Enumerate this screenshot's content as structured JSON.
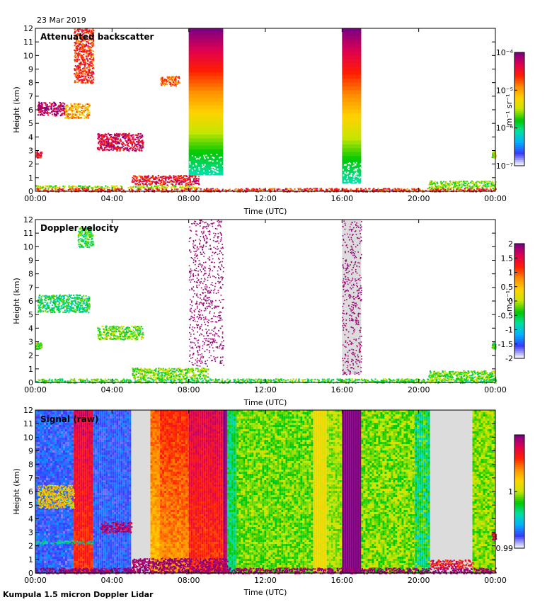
{
  "header": {
    "date": "23 Mar 2019"
  },
  "footer": {
    "instrument": "Kumpula 1.5 micron Doppler Lidar"
  },
  "palette": {
    "rainbow": [
      "#f2f2ff",
      "#3a3aff",
      "#00b0ff",
      "#00e0a0",
      "#00c800",
      "#c8e600",
      "#ffd200",
      "#ff8c00",
      "#ff1e00",
      "#e00050",
      "#800080"
    ],
    "missing_gray": "#dcdcdc"
  },
  "chart_data": [
    {
      "type": "heatmap",
      "id": "backscatter",
      "title": "Attenuated backscatter",
      "xlabel": "Time (UTC)",
      "ylabel": "Height (km)",
      "xlim": [
        0,
        24
      ],
      "ylim": [
        0,
        12
      ],
      "x_ticks": [
        0,
        4,
        8,
        12,
        16,
        20,
        24
      ],
      "x_tick_labels": [
        "00:00",
        "04:00",
        "08:00",
        "12:00",
        "16:00",
        "20:00",
        "00:00"
      ],
      "y_ticks": [
        0,
        1,
        2,
        3,
        4,
        5,
        6,
        7,
        8,
        9,
        10,
        11,
        12
      ],
      "colorbar": {
        "scale": "log",
        "range": [
          1e-07,
          0.0001
        ],
        "tick_values": [
          1e-07,
          1e-06,
          1e-05,
          0.0001
        ],
        "tick_labels": [
          "10⁻⁷",
          "10⁻⁶",
          "10⁻⁵",
          "10⁻⁴"
        ],
        "label": "m⁻¹ sr⁻¹"
      },
      "features": [
        {
          "kind": "block",
          "t": [
            8.0,
            9.8
          ],
          "h": [
            1.2,
            12
          ],
          "v": [
            0.3,
            1.0
          ],
          "dir": "vertical",
          "note": "dense returns rising to red at top"
        },
        {
          "kind": "block",
          "t": [
            16.0,
            17.0
          ],
          "h": [
            0.6,
            12
          ],
          "v": [
            0.3,
            1.0
          ],
          "dir": "vertical",
          "note": "strong column"
        },
        {
          "kind": "layer",
          "t": [
            0,
            8.5
          ],
          "h": [
            0.25,
            0.45
          ],
          "v": 0.5,
          "note": "boundary layer"
        },
        {
          "kind": "layer",
          "t": [
            0,
            24
          ],
          "h": [
            0.0,
            0.25
          ],
          "v": 0.8,
          "note": "surface layer"
        },
        {
          "kind": "layer",
          "t": [
            5.0,
            8.5
          ],
          "h": [
            0.5,
            1.2
          ],
          "v": 0.85,
          "note": "aerosol top descending"
        },
        {
          "kind": "layer",
          "t": [
            20.5,
            24
          ],
          "h": [
            0.25,
            0.8
          ],
          "v": 0.45,
          "note": "evening layer"
        },
        {
          "kind": "cloud",
          "t": [
            0.1,
            1.5
          ],
          "h": [
            5.6,
            6.6
          ],
          "v": 0.95,
          "note": "mid-level cloud"
        },
        {
          "kind": "cloud",
          "t": [
            1.5,
            2.8
          ],
          "h": [
            5.4,
            6.5
          ],
          "v": 0.65,
          "note": "mid-level cloud fading"
        },
        {
          "kind": "cloud",
          "t": [
            3.2,
            5.6
          ],
          "h": [
            3.0,
            4.3
          ],
          "v": 0.9,
          "note": "descending cloud"
        },
        {
          "kind": "cloud",
          "t": [
            2.0,
            3.0
          ],
          "h": [
            8.0,
            12
          ],
          "v": 0.8,
          "note": "cirrus"
        },
        {
          "kind": "cloud",
          "t": [
            0,
            0.3
          ],
          "h": [
            2.5,
            3.0
          ],
          "v": 0.85,
          "note": "low cloud"
        },
        {
          "kind": "cloud",
          "t": [
            6.5,
            7.5
          ],
          "h": [
            7.8,
            8.5
          ],
          "v": 0.75,
          "note": "small patch"
        },
        {
          "kind": "cloud",
          "t": [
            23.8,
            24
          ],
          "h": [
            2.5,
            3.0
          ],
          "v": 0.5,
          "note": "low cloud"
        }
      ]
    },
    {
      "type": "heatmap",
      "id": "doppler",
      "title": "Doppler velocity",
      "xlabel": "Time (UTC)",
      "ylabel": "Height (km)",
      "xlim": [
        0,
        24
      ],
      "ylim": [
        0,
        12
      ],
      "x_ticks": [
        0,
        4,
        8,
        12,
        16,
        20,
        24
      ],
      "x_tick_labels": [
        "00:00",
        "04:00",
        "08:00",
        "12:00",
        "16:00",
        "20:00",
        "00:00"
      ],
      "y_ticks": [
        0,
        1,
        2,
        3,
        4,
        5,
        6,
        7,
        8,
        9,
        10,
        11,
        12
      ],
      "colorbar": {
        "scale": "linear",
        "range": [
          -2,
          2
        ],
        "tick_values": [
          -2,
          -1.5,
          -1,
          -0.5,
          0,
          0.5,
          1,
          1.5,
          2
        ],
        "tick_labels": [
          "-2",
          "-1.5",
          "-1",
          "-0.5",
          "0",
          "0.5",
          "1",
          "1.5",
          "2"
        ],
        "label": "m s⁻¹"
      },
      "features": [
        {
          "kind": "noise",
          "t": [
            8.0,
            9.8
          ],
          "h": [
            1.2,
            12
          ],
          "v": 1.0,
          "note": "purple speckle"
        },
        {
          "kind": "noise",
          "t": [
            16.0,
            17.0
          ],
          "h": [
            0.6,
            12
          ],
          "v": 1.0,
          "note": "purple speckle on gray"
        },
        {
          "kind": "layer",
          "t": [
            0,
            24
          ],
          "h": [
            0.0,
            0.3
          ],
          "v": 0.4,
          "note": "near-surface velocities"
        },
        {
          "kind": "layer",
          "t": [
            5.0,
            9.0
          ],
          "h": [
            0.3,
            1.1
          ],
          "v": 0.45,
          "note": "mixed layer"
        },
        {
          "kind": "layer",
          "t": [
            20.5,
            24
          ],
          "h": [
            0.2,
            0.9
          ],
          "v": 0.45,
          "note": "evening layer"
        },
        {
          "kind": "cloud",
          "t": [
            0.1,
            2.8
          ],
          "h": [
            5.2,
            6.5
          ],
          "v": 0.35,
          "note": "mid-level cloud"
        },
        {
          "kind": "cloud",
          "t": [
            3.2,
            5.6
          ],
          "h": [
            3.2,
            4.2
          ],
          "v": 0.45,
          "note": "descending cloud"
        },
        {
          "kind": "cloud",
          "t": [
            2.2,
            3.0
          ],
          "h": [
            10,
            11.5
          ],
          "v": 0.4,
          "note": "cirrus patch"
        },
        {
          "kind": "cloud",
          "t": [
            0,
            0.3
          ],
          "h": [
            2.5,
            3.0
          ],
          "v": 0.45,
          "note": "low cloud"
        },
        {
          "kind": "cloud",
          "t": [
            23.8,
            24
          ],
          "h": [
            2.5,
            3.0
          ],
          "v": 0.4,
          "note": "low cloud"
        }
      ]
    },
    {
      "type": "heatmap",
      "id": "signal",
      "title": "Signal (raw)",
      "xlabel": "Time (UTC)",
      "ylabel": "Height (km)",
      "xlim": [
        0,
        24
      ],
      "ylim": [
        0,
        12
      ],
      "x_ticks": [
        0,
        4,
        8,
        12,
        16,
        20,
        24
      ],
      "x_tick_labels": [
        "00:00",
        "04:00",
        "08:00",
        "12:00",
        "16:00",
        "20:00",
        "00:00"
      ],
      "y_ticks": [
        0,
        1,
        2,
        3,
        4,
        5,
        6,
        7,
        8,
        9,
        10,
        11,
        12
      ],
      "colorbar": {
        "scale": "linear",
        "range": [
          0.99,
          1.01
        ],
        "tick_values": [
          0.99,
          1
        ],
        "tick_labels": [
          "0.99",
          "1"
        ],
        "label": ""
      },
      "columns": [
        {
          "t": [
            0,
            2.0
          ],
          "v": 0.12,
          "noise": 0.06
        },
        {
          "t": [
            2.0,
            3.0
          ],
          "v": 0.78,
          "noise": 0.05
        },
        {
          "t": [
            3.0,
            5.0
          ],
          "v": 0.12,
          "noise": 0.05
        },
        {
          "t": [
            5.0,
            6.0
          ],
          "v": -1
        },
        {
          "t": [
            6.0,
            6.5
          ],
          "v": 0.62,
          "noise": 0.05
        },
        {
          "t": [
            6.5,
            8.0
          ],
          "v": 0.68,
          "noise": 0.05
        },
        {
          "t": [
            8.0,
            9.8
          ],
          "v": 0.78,
          "noise": 0.05
        },
        {
          "t": [
            9.8,
            10.0
          ],
          "v": 0.92,
          "noise": 0.03
        },
        {
          "t": [
            10.0,
            10.5
          ],
          "v": 0.35,
          "noise": 0.08
        },
        {
          "t": [
            10.5,
            14.5
          ],
          "v": 0.45,
          "noise": 0.07
        },
        {
          "t": [
            14.5,
            15.2
          ],
          "v": 0.56,
          "noise": 0.05
        },
        {
          "t": [
            15.2,
            16.0
          ],
          "v": 0.48,
          "noise": 0.06
        },
        {
          "t": [
            16.0,
            17.0
          ],
          "v": 1.0,
          "noise": 0.0
        },
        {
          "t": [
            17.0,
            19.8
          ],
          "v": 0.46,
          "noise": 0.08
        },
        {
          "t": [
            19.8,
            20.6
          ],
          "v": 0.36,
          "noise": 0.12
        },
        {
          "t": [
            20.6,
            22.8
          ],
          "v": -1
        },
        {
          "t": [
            22.8,
            24
          ],
          "v": 0.47,
          "noise": 0.07
        }
      ],
      "features": [
        {
          "kind": "layer",
          "t": [
            0,
            24
          ],
          "h": [
            0.0,
            0.4
          ],
          "v": 1.0,
          "note": "surface return"
        },
        {
          "kind": "layer",
          "t": [
            5.0,
            10.0
          ],
          "h": [
            0.4,
            1.1
          ],
          "v": 1.0,
          "note": "boundary layer top"
        },
        {
          "kind": "layer",
          "t": [
            20.6,
            22.8
          ],
          "h": [
            0.4,
            1.0
          ],
          "v": 0.85,
          "note": "evening layer"
        },
        {
          "kind": "cloud",
          "t": [
            0.1,
            2.0
          ],
          "h": [
            4.8,
            6.5
          ],
          "v": 0.6,
          "note": "mid-level cloud"
        },
        {
          "kind": "cloud",
          "t": [
            3.4,
            5.0
          ],
          "h": [
            3.0,
            3.8
          ],
          "v": 0.95,
          "note": "descending cloud"
        },
        {
          "kind": "cloud",
          "t": [
            0,
            3.0
          ],
          "h": [
            2.2,
            2.4
          ],
          "v": 0.3,
          "note": "faint band"
        },
        {
          "kind": "cloud",
          "t": [
            23.8,
            24
          ],
          "h": [
            2.5,
            3.0
          ],
          "v": 0.9,
          "note": "low cloud"
        }
      ]
    }
  ]
}
